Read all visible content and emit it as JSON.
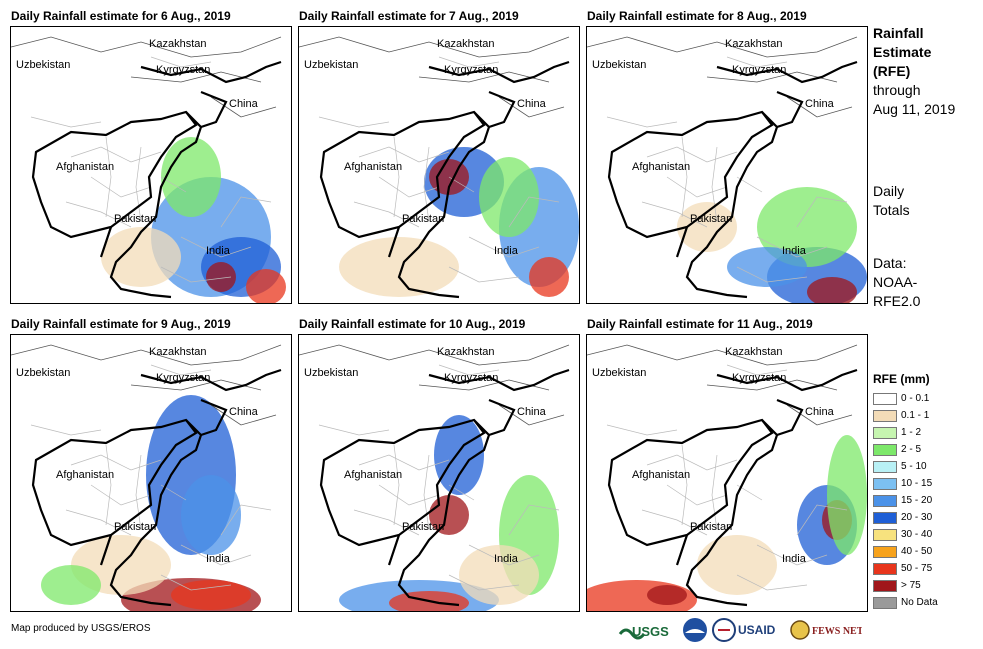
{
  "panels": [
    {
      "title": "Daily Rainfall estimate for 6 Aug., 2019"
    },
    {
      "title": "Daily Rainfall estimate for 7 Aug., 2019"
    },
    {
      "title": "Daily Rainfall estimate for 8 Aug., 2019"
    },
    {
      "title": "Daily Rainfall estimate for 9 Aug., 2019"
    },
    {
      "title": "Daily Rainfall estimate for 10 Aug., 2019"
    },
    {
      "title": "Daily Rainfall estimate for 11 Aug., 2019"
    }
  ],
  "map_labels": {
    "kazakhstan": "Kazakhstan",
    "uzbekistan": "Uzbekistan",
    "kyrgyzstan": "Kyrgyzstan",
    "china": "China",
    "afghanistan": "Afghanistan",
    "pakistan": "Pakistan",
    "india": "India"
  },
  "side": {
    "title_line1": "Rainfall",
    "title_line2": "Estimate",
    "title_line3": "(RFE)",
    "through_line1": "through",
    "through_line2": "Aug 11, 2019",
    "daily_line1": "Daily",
    "daily_line2": "Totals",
    "data_line1": "Data:",
    "data_line2": "NOAA-",
    "data_line3": "RFE2.0"
  },
  "legend": {
    "title": "RFE (mm)",
    "items": [
      {
        "label": "0 - 0.1",
        "color": "#ffffff"
      },
      {
        "label": "0.1 - 1",
        "color": "#f3dcb8"
      },
      {
        "label": "1 - 2",
        "color": "#c6f5b0"
      },
      {
        "label": "2 - 5",
        "color": "#7de86a"
      },
      {
        "label": "5 - 10",
        "color": "#b8f0f5"
      },
      {
        "label": "10 - 15",
        "color": "#7cc0f2"
      },
      {
        "label": "15 - 20",
        "color": "#4b92e8"
      },
      {
        "label": "20 - 30",
        "color": "#1f5fd6"
      },
      {
        "label": "30 - 40",
        "color": "#f7e27e"
      },
      {
        "label": "40 - 50",
        "color": "#f7a21b"
      },
      {
        "label": "50 - 75",
        "color": "#e8351c"
      },
      {
        "label": "> 75",
        "color": "#a0161a"
      },
      {
        "label": "No Data",
        "color": "#9a9a9a"
      }
    ]
  },
  "credit": "Map produced by USGS/EROS",
  "logos": {
    "usgs": "USGS",
    "usaid": "USAID",
    "fewsnet": "FEWS NET"
  }
}
